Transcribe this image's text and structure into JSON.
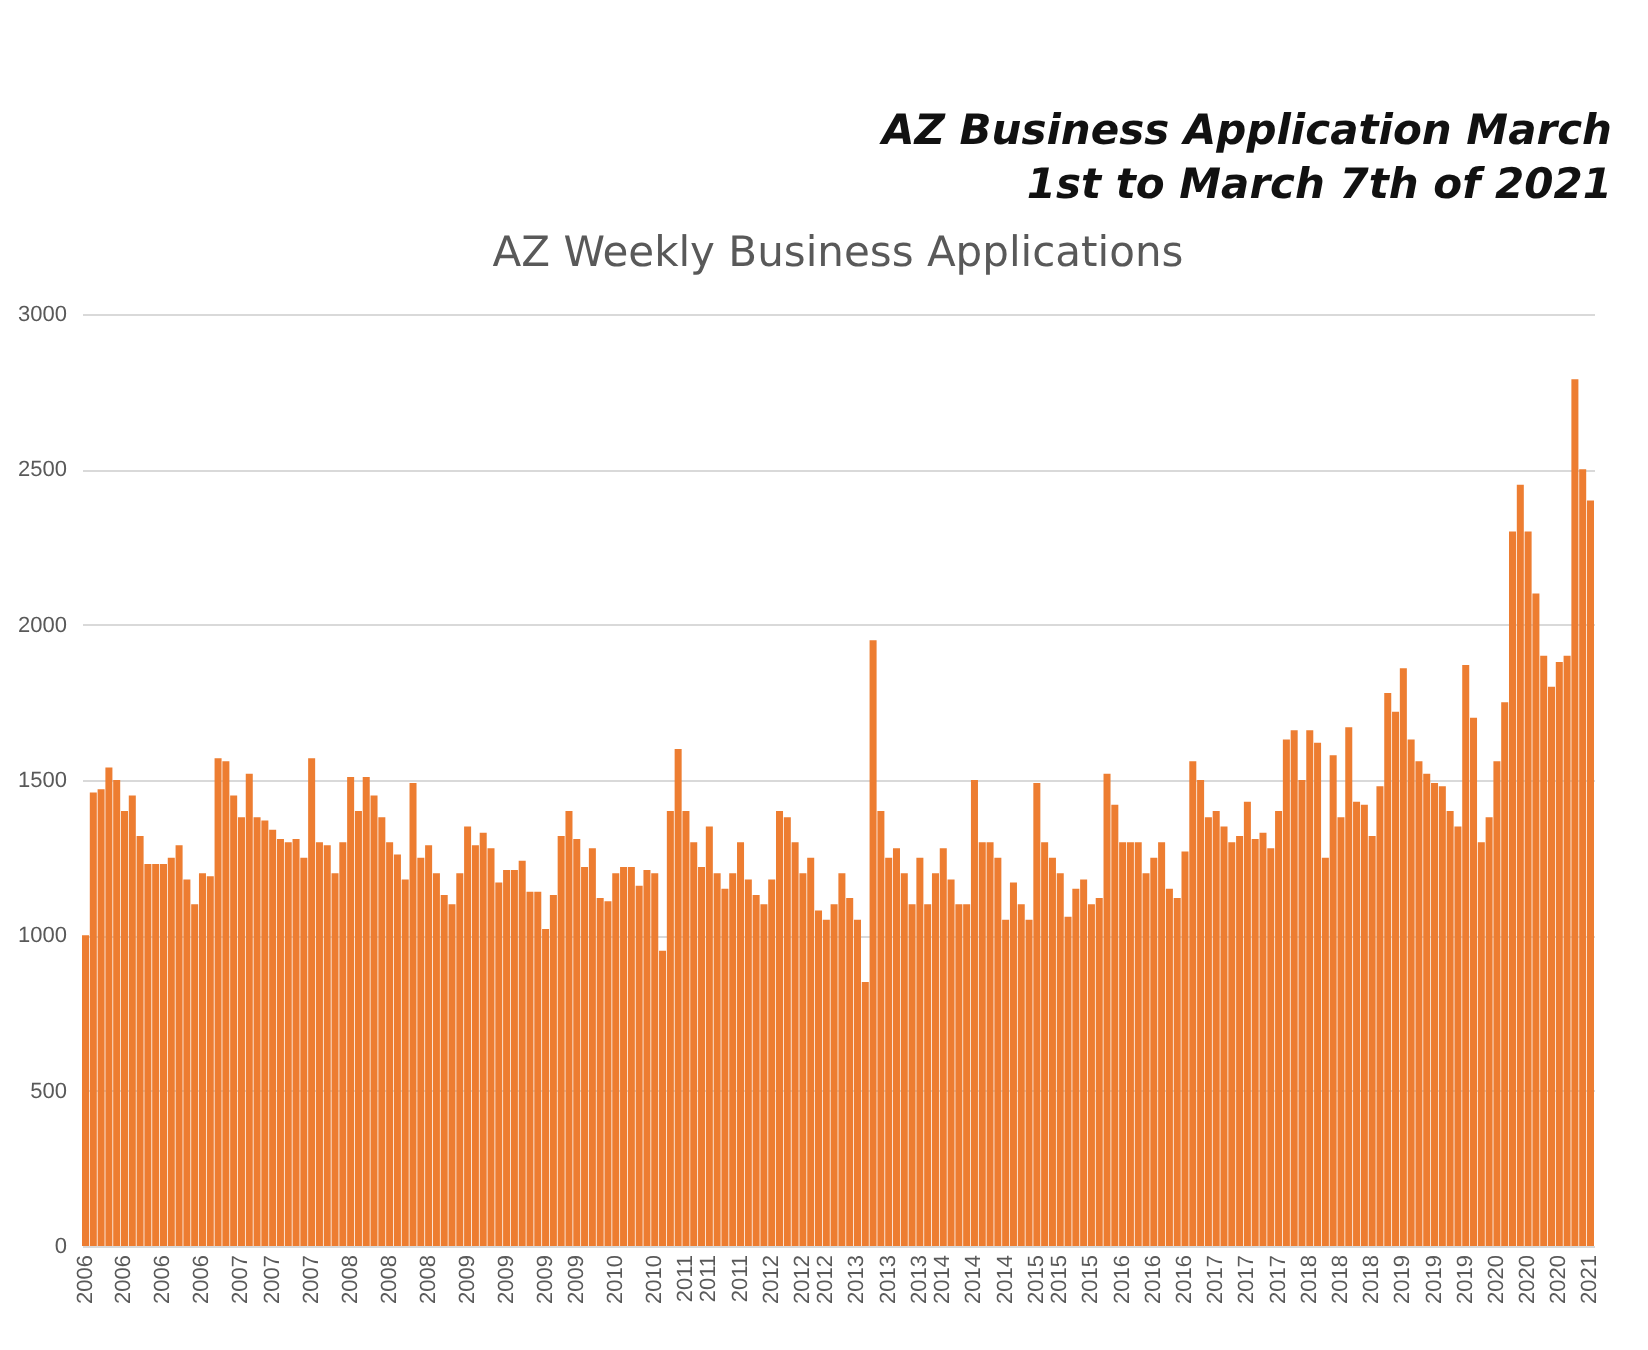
{
  "chart_data": {
    "type": "bar",
    "title": "AZ Weekly Business Applications",
    "subtitle": "AZ Business Application March 1st to March 7th of 2021",
    "categories": [
      "2006",
      null,
      null,
      null,
      null,
      "2006",
      null,
      null,
      null,
      null,
      "2006",
      null,
      null,
      null,
      null,
      "2006",
      null,
      null,
      null,
      null,
      "2007",
      null,
      null,
      null,
      "2007",
      null,
      null,
      null,
      null,
      "2007",
      null,
      null,
      null,
      null,
      "2008",
      null,
      null,
      null,
      null,
      "2008",
      null,
      null,
      null,
      null,
      "2008",
      null,
      null,
      null,
      null,
      "2009",
      null,
      null,
      null,
      null,
      "2009",
      null,
      null,
      null,
      null,
      "2009",
      null,
      null,
      null,
      "2009",
      null,
      null,
      null,
      null,
      "2010",
      null,
      null,
      null,
      null,
      "2010",
      null,
      null,
      null,
      "2011",
      null,
      null,
      "2011",
      null,
      null,
      null,
      "2011",
      null,
      null,
      null,
      "2012",
      null,
      null,
      null,
      "2012",
      null,
      null,
      "2012",
      null,
      null,
      null,
      "2013",
      null,
      null,
      null,
      "2013",
      null,
      null,
      null,
      "2013",
      null,
      null,
      "2014",
      null,
      null,
      null,
      "2014",
      null,
      null,
      null,
      "2014",
      null,
      null,
      null,
      "2015",
      null,
      null,
      "2015",
      null,
      null,
      null,
      "2015",
      null,
      null,
      null,
      "2016",
      null,
      null,
      null,
      "2016",
      null,
      null,
      null,
      "2016",
      null,
      null,
      null,
      "2017",
      null,
      null,
      null,
      "2017",
      null,
      null,
      null,
      "2017",
      null,
      null,
      null,
      "2018",
      null,
      null,
      null,
      "2018",
      null,
      null,
      null,
      "2018",
      null,
      null,
      null,
      "2019",
      null,
      null,
      null,
      "2019",
      null,
      null,
      null,
      "2019",
      null,
      null,
      null,
      "2020",
      null,
      null,
      null,
      "2020",
      null,
      null,
      null,
      "2020",
      null,
      null,
      null,
      "2021"
    ],
    "values": [
      1000,
      1460,
      1470,
      1540,
      1500,
      1400,
      1450,
      1320,
      1230,
      1230,
      1230,
      1250,
      1290,
      1180,
      1100,
      1200,
      1190,
      1570,
      1560,
      1450,
      1380,
      1520,
      1380,
      1370,
      1340,
      1310,
      1300,
      1310,
      1250,
      1570,
      1300,
      1290,
      1200,
      1300,
      1510,
      1400,
      1510,
      1450,
      1380,
      1300,
      1260,
      1180,
      1490,
      1250,
      1290,
      1200,
      1130,
      1100,
      1200,
      1350,
      1290,
      1330,
      1280,
      1170,
      1210,
      1210,
      1240,
      1140,
      1140,
      1020,
      1130,
      1320,
      1400,
      1310,
      1220,
      1280,
      1120,
      1110,
      1200,
      1220,
      1220,
      1160,
      1210,
      1200,
      950,
      1400,
      1600,
      1400,
      1300,
      1220,
      1350,
      1200,
      1150,
      1200,
      1300,
      1180,
      1130,
      1100,
      1180,
      1400,
      1380,
      1300,
      1200,
      1250,
      1080,
      1050,
      1100,
      1200,
      1120,
      1050,
      850,
      1950,
      1400,
      1250,
      1280,
      1200,
      1100,
      1250,
      1100,
      1200,
      1280,
      1180,
      1100,
      1100,
      1500,
      1300,
      1300,
      1250,
      1050,
      1170,
      1100,
      1050,
      1490,
      1300,
      1250,
      1200,
      1060,
      1150,
      1180,
      1100,
      1120,
      1520,
      1420,
      1300,
      1300,
      1300,
      1200,
      1250,
      1300,
      1150,
      1120,
      1270,
      1560,
      1500,
      1380,
      1400,
      1350,
      1300,
      1320,
      1430,
      1310,
      1330,
      1280,
      1400,
      1630,
      1660,
      1500,
      1660,
      1620,
      1250,
      1580,
      1380,
      1670,
      1430,
      1420,
      1320,
      1480,
      1780,
      1720,
      1860,
      1630,
      1560,
      1520,
      1490,
      1480,
      1400,
      1350,
      1870,
      1700,
      1300,
      1380,
      1560,
      1750,
      2300,
      2450,
      2300,
      2100,
      1900,
      1800,
      1880,
      1900,
      2790,
      2500,
      2400
    ],
    "color": "#ed7d31",
    "ylim": [
      0,
      3000
    ],
    "yticks": [
      0,
      500,
      1000,
      1500,
      2000,
      2500,
      3000
    ],
    "grid": "y"
  }
}
